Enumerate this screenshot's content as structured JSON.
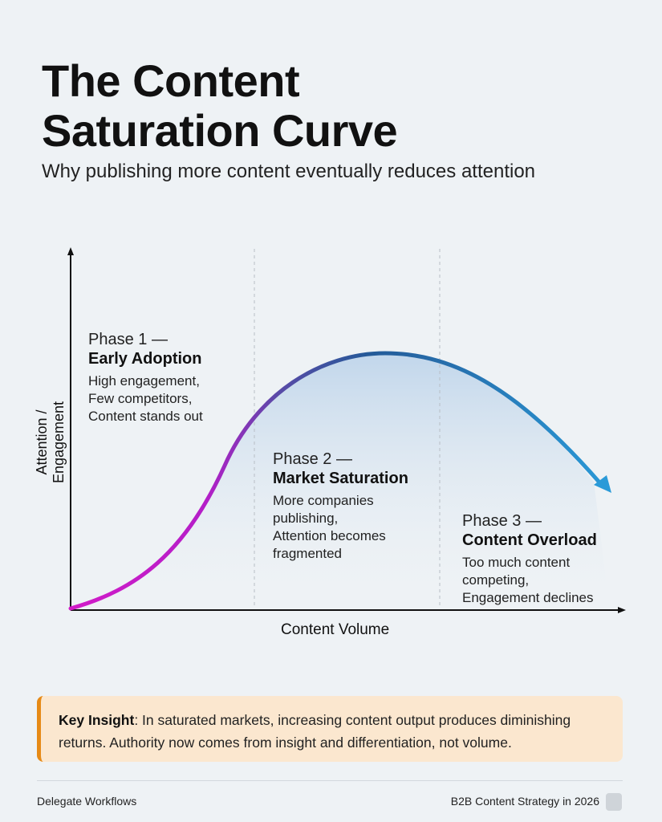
{
  "header": {
    "title_line1": "The Content",
    "title_line2": "Saturation Curve",
    "subtitle": "Why publishing more content eventually reduces attention"
  },
  "diagram": {
    "y_axis_label": "Attention / Engagement",
    "x_axis_label": "Content Volume",
    "curve_colors": {
      "start": "#d21cc8",
      "mid": "#2a5fa0",
      "end": "#2a96d8"
    },
    "phases": [
      {
        "number": "Phase 1 —",
        "name": "Early Adoption",
        "description": [
          "High engagement,",
          "Few competitors,",
          "Content stands out"
        ]
      },
      {
        "number": "Phase 2 —",
        "name": "Market Saturation",
        "description": [
          "More companies",
          "publishing,",
          "Attention becomes",
          "fragmented"
        ]
      },
      {
        "number": "Phase 3 —",
        "name": "Content Overload",
        "description": [
          "Too much content",
          "competing,",
          "Engagement declines"
        ]
      }
    ]
  },
  "insight": {
    "label": "Key Insight",
    "text": ": In saturated markets, increasing content output produces diminishing returns. Authority now comes from insight and differentiation, not volume.",
    "accent_color": "#e68a16"
  },
  "footer": {
    "left": "Delegate Workflows",
    "right": "B2B Content Strategy in 2026"
  }
}
